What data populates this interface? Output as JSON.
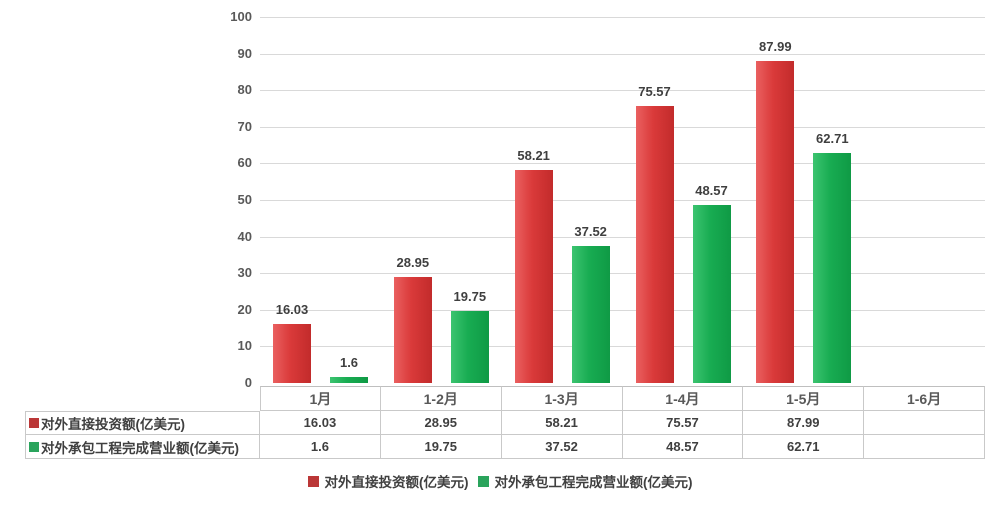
{
  "chart_data": {
    "type": "bar",
    "title": "",
    "categories": [
      "1月",
      "1-2月",
      "1-3月",
      "1-4月",
      "1-5月",
      "1-6月"
    ],
    "series": [
      {
        "name": "对外直接投资额(亿美元)",
        "values": [
          16.03,
          28.95,
          58.21,
          75.57,
          87.99,
          null
        ],
        "labels": [
          "16.03",
          "28.95",
          "58.21",
          "75.57",
          "87.99",
          ""
        ],
        "fill": [
          "#ea6060",
          "#da3a3a",
          "#c22b2b"
        ],
        "key_color": "#bb3737"
      },
      {
        "name": "对外承包工程完成营业额(亿美元)",
        "values": [
          1.6,
          19.75,
          37.52,
          48.57,
          62.71,
          null
        ],
        "labels": [
          "1.6",
          "19.75",
          "37.52",
          "48.57",
          "62.71",
          ""
        ],
        "fill": [
          "#3cc470",
          "#18ac52",
          "#0f9a45"
        ],
        "key_color": "#2aa45c"
      }
    ],
    "ylim": [
      0,
      100
    ],
    "yticks": [
      0,
      10,
      20,
      30,
      40,
      50,
      60,
      70,
      80,
      90,
      100
    ],
    "grid": true,
    "legend_position": "bottom",
    "data_table_shown": true
  },
  "table": {
    "rows": [
      {
        "label": "对外直接投资额(亿美元)",
        "key_color": "#bb3737",
        "values": [
          "16.03",
          "28.95",
          "58.21",
          "75.57",
          "87.99",
          ""
        ]
      },
      {
        "label": "对外承包工程完成营业额(亿美元)",
        "key_color": "#2aa45c",
        "values": [
          "1.6",
          "19.75",
          "37.52",
          "48.57",
          "62.71",
          ""
        ]
      }
    ]
  },
  "legend": {
    "items": [
      {
        "label": "对外直接投资额(亿美元)",
        "color": "#bb3737"
      },
      {
        "label": "对外承包工程完成营业额(亿美元)",
        "color": "#2aa45c"
      }
    ]
  },
  "colors": {
    "gridline": "#d9d9d9",
    "axis_text": "#595959",
    "label_text": "#3f3f3f",
    "table_border": "#c9c9c9"
  }
}
